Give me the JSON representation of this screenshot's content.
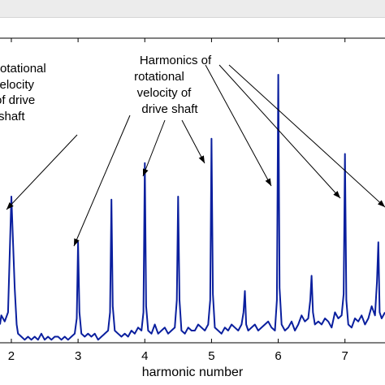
{
  "chart_data": {
    "type": "line",
    "title": "",
    "xlabel": "harmonic number",
    "ylabel": "",
    "xlim": [
      1.83,
      7.6
    ],
    "ylim": [
      0,
      100
    ],
    "xticks": [
      2,
      3,
      4,
      5,
      6,
      7
    ],
    "grid": false,
    "line_color": "#0a1f9e",
    "x": [
      1.83,
      1.85,
      1.9,
      1.95,
      2.0,
      2.05,
      2.08,
      2.1,
      2.15,
      2.2,
      2.25,
      2.3,
      2.35,
      2.4,
      2.45,
      2.5,
      2.55,
      2.6,
      2.65,
      2.7,
      2.75,
      2.8,
      2.85,
      2.9,
      2.95,
      2.98,
      3.0,
      3.02,
      3.05,
      3.1,
      3.15,
      3.2,
      3.25,
      3.3,
      3.35,
      3.4,
      3.45,
      3.48,
      3.5,
      3.52,
      3.55,
      3.6,
      3.65,
      3.7,
      3.75,
      3.8,
      3.85,
      3.9,
      3.95,
      3.98,
      4.0,
      4.02,
      4.05,
      4.1,
      4.15,
      4.2,
      4.25,
      4.3,
      4.35,
      4.4,
      4.45,
      4.48,
      4.5,
      4.52,
      4.55,
      4.6,
      4.65,
      4.7,
      4.75,
      4.8,
      4.85,
      4.9,
      4.95,
      4.98,
      5.0,
      5.02,
      5.05,
      5.1,
      5.15,
      5.2,
      5.25,
      5.3,
      5.35,
      5.4,
      5.45,
      5.48,
      5.5,
      5.52,
      5.55,
      5.6,
      5.65,
      5.7,
      5.75,
      5.8,
      5.85,
      5.9,
      5.95,
      5.98,
      6.0,
      6.02,
      6.05,
      6.1,
      6.15,
      6.2,
      6.25,
      6.3,
      6.35,
      6.4,
      6.45,
      6.48,
      6.5,
      6.52,
      6.55,
      6.6,
      6.65,
      6.7,
      6.75,
      6.8,
      6.85,
      6.9,
      6.95,
      6.98,
      7.0,
      7.02,
      7.05,
      7.1,
      7.15,
      7.2,
      7.25,
      7.3,
      7.35,
      7.4,
      7.45,
      7.48,
      7.5,
      7.52,
      7.55,
      7.6
    ],
    "y": [
      6,
      9,
      7,
      10,
      48,
      18,
      6,
      3,
      2,
      1,
      2,
      1,
      2,
      1,
      3,
      1,
      2,
      1,
      2,
      2,
      1,
      2,
      1,
      2,
      3,
      8,
      33,
      10,
      3,
      2,
      3,
      2,
      3,
      1,
      2,
      3,
      4,
      10,
      47,
      12,
      4,
      3,
      2,
      3,
      2,
      4,
      3,
      5,
      4,
      10,
      59,
      12,
      4,
      3,
      6,
      3,
      4,
      5,
      3,
      4,
      5,
      14,
      48,
      14,
      4,
      3,
      5,
      4,
      4,
      6,
      5,
      4,
      6,
      14,
      67,
      16,
      5,
      4,
      3,
      5,
      4,
      6,
      5,
      4,
      6,
      10,
      17,
      6,
      4,
      5,
      6,
      4,
      5,
      6,
      7,
      5,
      4,
      14,
      88,
      18,
      6,
      4,
      5,
      7,
      4,
      6,
      9,
      7,
      8,
      14,
      22,
      10,
      6,
      7,
      6,
      8,
      7,
      5,
      10,
      8,
      9,
      16,
      62,
      14,
      6,
      5,
      8,
      7,
      9,
      6,
      8,
      12,
      9,
      20,
      33,
      10,
      8,
      10
    ]
  },
  "annotations": {
    "left_lines": [
      "rotational",
      "velocity",
      "of drive",
      "shaft"
    ],
    "center_lines": [
      "Harmonics of",
      "rotational",
      "velocity of",
      "drive shaft"
    ]
  }
}
